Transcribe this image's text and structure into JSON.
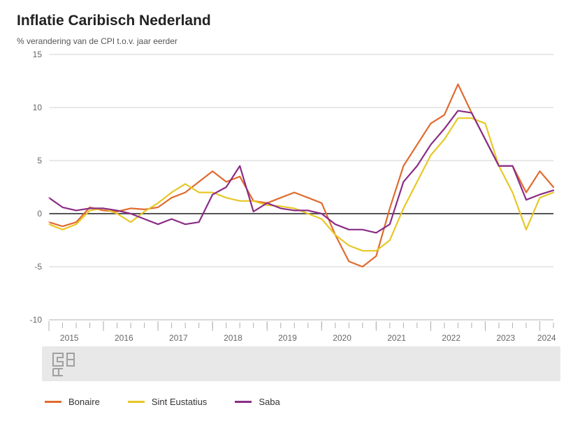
{
  "title": "Inflatie Caribisch Nederland",
  "subtitle": "% verandering van de CPI t.o.v. jaar eerder",
  "chart": {
    "type": "line",
    "background_color": "#ffffff",
    "plot_border_color": "#b0b0b0",
    "grid_color": "#d0d0d0",
    "zero_line_color": "#555555",
    "zero_line_width": 2,
    "axis_font_size": 12,
    "axis_color": "#666666",
    "line_width": 2.2,
    "ylim": [
      -10,
      15
    ],
    "yticks": [
      -10,
      -5,
      0,
      5,
      10,
      15
    ],
    "x_year_labels": [
      "2015",
      "2016",
      "2017",
      "2018",
      "2019",
      "2020",
      "2021",
      "2022",
      "2023",
      "2024"
    ],
    "n_points": 38,
    "footer_band_color": "#e8e8e8",
    "series": [
      {
        "name": "Bonaire",
        "color": "#e06b2e",
        "values": [
          -0.8,
          -1.2,
          -0.8,
          0.6,
          0.3,
          0.2,
          0.5,
          0.4,
          0.6,
          1.5,
          2.0,
          3.0,
          4.0,
          3.0,
          3.5,
          1.2,
          1.0,
          1.5,
          2.0,
          1.5,
          1.0,
          -2.0,
          -4.5,
          -5.0,
          -4.0,
          0.5,
          4.5,
          6.5,
          8.5,
          9.3,
          12.2,
          9.5,
          7.0,
          4.5,
          4.5,
          2.0,
          4.0,
          2.5
        ]
      },
      {
        "name": "Sint Eustatius",
        "color": "#e8c726",
        "values": [
          -1.0,
          -1.5,
          -1.0,
          0.3,
          0.5,
          0.0,
          -0.8,
          0.2,
          1.0,
          2.0,
          2.8,
          2.0,
          2.0,
          1.5,
          1.2,
          1.2,
          0.8,
          0.7,
          0.5,
          0.0,
          -0.5,
          -2.0,
          -3.0,
          -3.5,
          -3.5,
          -2.5,
          0.5,
          3.0,
          5.5,
          7.0,
          9.0,
          9.0,
          8.5,
          4.5,
          2.0,
          -1.5,
          1.5,
          2.0
        ]
      },
      {
        "name": "Saba",
        "color": "#8a2d86",
        "values": [
          1.5,
          0.6,
          0.3,
          0.5,
          0.5,
          0.3,
          0.0,
          -0.5,
          -1.0,
          -0.5,
          -1.0,
          -0.8,
          1.8,
          2.5,
          4.5,
          0.2,
          1.0,
          0.5,
          0.3,
          0.3,
          0.0,
          -1.0,
          -1.5,
          -1.5,
          -1.8,
          -1.0,
          3.0,
          4.5,
          6.5,
          8.0,
          9.7,
          9.5,
          7.0,
          4.5,
          4.5,
          1.3,
          1.8,
          2.2
        ]
      }
    ]
  },
  "legend": {
    "items": [
      "Bonaire",
      "Sint Eustatius",
      "Saba"
    ]
  }
}
